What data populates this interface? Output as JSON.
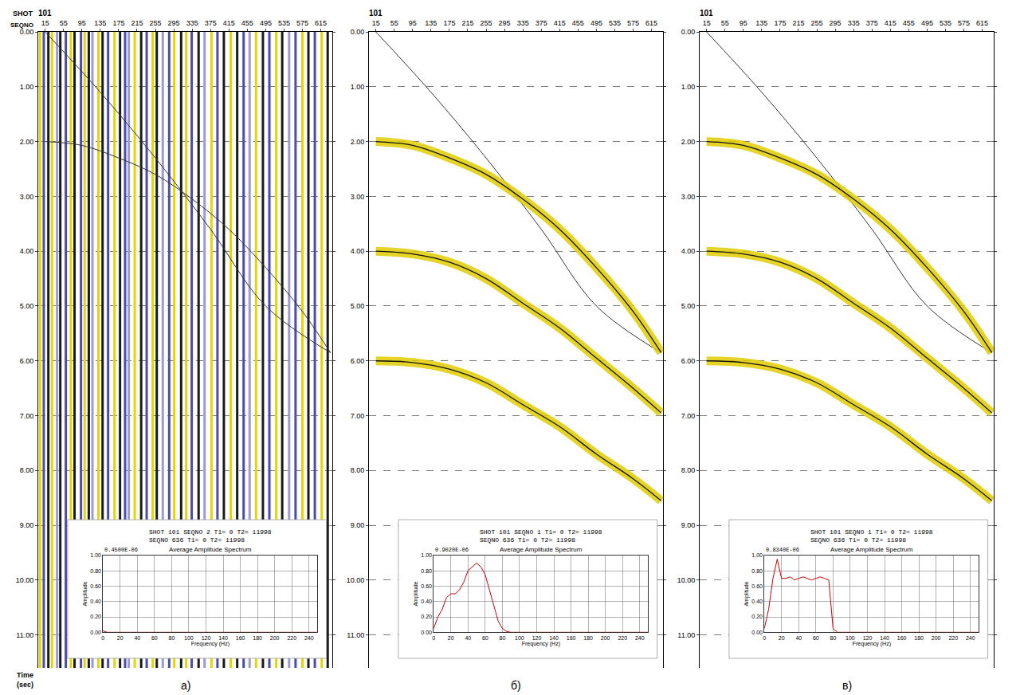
{
  "chart_data": [
    {
      "type": "line",
      "title": "а)",
      "shot_label": "SHOT",
      "x_label": "SEQNO",
      "shot": "101",
      "y_label": "Time (sec)",
      "xlim": [
        0,
        640
      ],
      "xticks": [
        15,
        55,
        95,
        135,
        175,
        215,
        255,
        295,
        335,
        375,
        415,
        455,
        495,
        535,
        575,
        615
      ],
      "ylim": [
        0,
        11.6
      ],
      "yticks": [
        {
          "value": 0,
          "label": "0.00"
        },
        {
          "value": 1,
          "label": "1.00"
        },
        {
          "value": 2,
          "label": "2.00"
        },
        {
          "value": 3,
          "label": "3.00"
        },
        {
          "value": 4,
          "label": "4.00"
        },
        {
          "value": 5,
          "label": "5.00"
        },
        {
          "value": 6,
          "label": "6.00"
        },
        {
          "value": 7,
          "label": "7.00"
        },
        {
          "value": 8,
          "label": "8.00"
        },
        {
          "value": 9,
          "label": "9.00"
        },
        {
          "value": 10,
          "label": "10.00"
        },
        {
          "value": 11,
          "label": "11.00"
        }
      ],
      "grid": true,
      "noise_traces": {
        "x": [
          4,
          12,
          22,
          30,
          41,
          48,
          60,
          71,
          79,
          93,
          101,
          110,
          118,
          131,
          140,
          152,
          166,
          178,
          189,
          197,
          210,
          224,
          236,
          249,
          258,
          271,
          285,
          296,
          311,
          322,
          334,
          349,
          362,
          377,
          390,
          404,
          419,
          433,
          447,
          460,
          474,
          489,
          503,
          518,
          531,
          546,
          560,
          575,
          588,
          602,
          617,
          630
        ],
        "colors": [
          "#e8d400",
          "#4b4bb4",
          "#1a1a1a",
          "#e8d400",
          "#9a9ad8",
          "#1a1a1a",
          "#4b4bb4",
          "#e8d400",
          "#1a1a1a",
          "#4b4bb4",
          "#e8d400",
          "#1a1a1a",
          "#9a9ad8",
          "#e8d400",
          "#1a1a1a",
          "#4b4bb4",
          "#e8d400",
          "#1a1a1a",
          "#4b4bb4",
          "#9a9ad8",
          "#e8d400",
          "#1a1a1a",
          "#4b4bb4",
          "#e8d400",
          "#1a1a1a",
          "#9a9ad8",
          "#4b4bb4",
          "#e8d400",
          "#1a1a1a",
          "#e8d400",
          "#4b4bb4",
          "#1a1a1a",
          "#9a9ad8",
          "#e8d400",
          "#4b4bb4",
          "#1a1a1a",
          "#e8d400",
          "#1a1a1a",
          "#4b4bb4",
          "#9a9ad8",
          "#e8d400",
          "#1a1a1a",
          "#4b4bb4",
          "#e8d400",
          "#1a1a1a",
          "#9a9ad8",
          "#4b4bb4",
          "#e8d400",
          "#1a1a1a",
          "#4b4bb4",
          "#e8d400",
          "#1a1a1a"
        ]
      },
      "series": [
        {
          "x": [
            15,
            135,
            255,
            375,
            495,
            636
          ],
          "values": [
            0,
            1.1,
            2.3,
            3.6,
            5.0,
            5.85
          ],
          "color": "#333333",
          "line_style": "solid"
        },
        {
          "x": [
            15,
            95,
            175,
            255,
            335,
            415,
            495,
            575,
            636
          ],
          "values": [
            2.0,
            2.07,
            2.3,
            2.6,
            3.05,
            3.6,
            4.3,
            5.1,
            5.85
          ],
          "color": "#333333",
          "line_style": "solid"
        }
      ],
      "spectrum": {
        "type": "line",
        "header": [
          "SHOT 101 SEQNO 2 T1= 0 T2= 11998",
          "SEQNO 636 T1= 0 T2= 11998"
        ],
        "title": "Average Amplitude Spectrum",
        "scale_label": "0.4500E-06",
        "x_label": "Frequency (Hz)",
        "y_label": "Amplitude",
        "x": [
          0,
          5,
          10,
          15,
          20,
          25,
          30,
          35,
          40,
          45,
          50,
          55,
          60,
          65,
          70,
          75,
          80,
          85,
          90,
          95,
          100,
          150,
          200,
          250
        ],
        "values": [
          0.02,
          0,
          0,
          0,
          0,
          0,
          0,
          0,
          0,
          0,
          0,
          0,
          0,
          0,
          0,
          0,
          0,
          0,
          0,
          0,
          0,
          0,
          0,
          0
        ],
        "color": "#cc0000",
        "xlim": [
          0,
          250
        ],
        "xticks": [
          0,
          20,
          40,
          60,
          80,
          100,
          120,
          140,
          160,
          180,
          200,
          220,
          240
        ],
        "ylim": [
          0,
          1
        ],
        "yticks": [
          {
            "value": 0,
            "label": "0.00"
          },
          {
            "value": 0.2,
            "label": "0.20"
          },
          {
            "value": 0.4,
            "label": "0.40"
          },
          {
            "value": 0.6,
            "label": "0.60"
          },
          {
            "value": 0.8,
            "label": "0.80"
          },
          {
            "value": 1,
            "label": "1.00"
          }
        ],
        "grid": true
      }
    },
    {
      "type": "line",
      "title": "б)",
      "shot": "101",
      "xlim": [
        0,
        640
      ],
      "xticks": [
        15,
        55,
        95,
        135,
        175,
        215,
        255,
        295,
        335,
        375,
        415,
        455,
        495,
        535,
        575,
        615
      ],
      "ylim": [
        0,
        11.6
      ],
      "yticks": [
        {
          "value": 0,
          "label": "0.00"
        },
        {
          "value": 1,
          "label": "1.00"
        },
        {
          "value": 2,
          "label": "2.00"
        },
        {
          "value": 3,
          "label": "3.00"
        },
        {
          "value": 4,
          "label": "4.00"
        },
        {
          "value": 5,
          "label": "5.00"
        },
        {
          "value": 6,
          "label": "6.00"
        },
        {
          "value": 7,
          "label": "7.00"
        },
        {
          "value": 8,
          "label": "8.00"
        },
        {
          "value": 9,
          "label": "9.00"
        },
        {
          "value": 10,
          "label": "10.00"
        },
        {
          "value": 11,
          "label": "11.00"
        }
      ],
      "grid": true,
      "series": [
        {
          "x": [
            15,
            135,
            255,
            375,
            495,
            636
          ],
          "values": [
            0,
            1.1,
            2.3,
            3.6,
            5.0,
            5.85
          ],
          "color": "#333333",
          "line_style": "solid"
        },
        {
          "x": [
            15,
            95,
            175,
            255,
            335,
            415,
            495,
            575,
            636
          ],
          "values": [
            2.0,
            2.07,
            2.3,
            2.6,
            3.05,
            3.6,
            4.3,
            5.1,
            5.85
          ],
          "color": "#e0cc00",
          "line_style": "band"
        },
        {
          "x": [
            15,
            95,
            175,
            255,
            335,
            415,
            495,
            575,
            636
          ],
          "values": [
            4.0,
            4.05,
            4.2,
            4.5,
            4.95,
            5.4,
            5.95,
            6.5,
            6.95
          ],
          "color": "#e0cc00",
          "line_style": "band"
        },
        {
          "x": [
            15,
            95,
            175,
            255,
            335,
            415,
            495,
            575,
            636
          ],
          "values": [
            6.0,
            6.03,
            6.15,
            6.4,
            6.8,
            7.2,
            7.7,
            8.15,
            8.55
          ],
          "color": "#e0cc00",
          "line_style": "band"
        }
      ],
      "spectrum": {
        "type": "line",
        "header": [
          "SHOT 101 SEQNO 1 T1= 0 T2= 11998",
          "SEQNO 636 T1= 0 T2= 11998"
        ],
        "title": "Average Amplitude Spectrum",
        "scale_label": "0.9020E-06",
        "x_label": "Frequency (Hz)",
        "y_label": "Amplitude",
        "x": [
          0,
          5,
          10,
          15,
          20,
          25,
          30,
          35,
          40,
          45,
          50,
          55,
          60,
          65,
          70,
          75,
          80,
          85,
          90,
          95,
          100,
          150,
          200,
          250
        ],
        "values": [
          0.05,
          0.2,
          0.3,
          0.45,
          0.5,
          0.5,
          0.55,
          0.65,
          0.8,
          0.85,
          0.9,
          0.85,
          0.75,
          0.55,
          0.35,
          0.15,
          0.05,
          0.01,
          0,
          0,
          0,
          0,
          0,
          0
        ],
        "color": "#cc0000",
        "xlim": [
          0,
          250
        ],
        "xticks": [
          0,
          20,
          40,
          60,
          80,
          100,
          120,
          140,
          160,
          180,
          200,
          220,
          240
        ],
        "ylim": [
          0,
          1
        ],
        "yticks": [
          {
            "value": 0,
            "label": "0.00"
          },
          {
            "value": 0.2,
            "label": "0.20"
          },
          {
            "value": 0.4,
            "label": "0.40"
          },
          {
            "value": 0.6,
            "label": "0.60"
          },
          {
            "value": 0.8,
            "label": "0.80"
          },
          {
            "value": 1,
            "label": "1.00"
          }
        ],
        "grid": true
      }
    },
    {
      "type": "line",
      "title": "в)",
      "shot": "101",
      "xlim": [
        0,
        640
      ],
      "xticks": [
        15,
        55,
        95,
        135,
        175,
        215,
        255,
        295,
        335,
        375,
        415,
        455,
        495,
        535,
        575,
        615
      ],
      "ylim": [
        0,
        11.6
      ],
      "yticks": [
        {
          "value": 0,
          "label": "0.00"
        },
        {
          "value": 1,
          "label": "1.00"
        },
        {
          "value": 2,
          "label": "2.00"
        },
        {
          "value": 3,
          "label": "3.00"
        },
        {
          "value": 4,
          "label": "4.00"
        },
        {
          "value": 5,
          "label": "5.00"
        },
        {
          "value": 6,
          "label": "6.00"
        },
        {
          "value": 7,
          "label": "7.00"
        },
        {
          "value": 8,
          "label": "8.00"
        },
        {
          "value": 9,
          "label": "9.00"
        },
        {
          "value": 10,
          "label": "10.00"
        },
        {
          "value": 11,
          "label": "11.00"
        }
      ],
      "grid": true,
      "series": [
        {
          "x": [
            15,
            135,
            255,
            375,
            495,
            636
          ],
          "values": [
            0,
            1.1,
            2.3,
            3.6,
            5.0,
            5.85
          ],
          "color": "#333333",
          "line_style": "solid"
        },
        {
          "x": [
            15,
            95,
            175,
            255,
            335,
            415,
            495,
            575,
            636
          ],
          "values": [
            2.0,
            2.07,
            2.3,
            2.6,
            3.05,
            3.6,
            4.3,
            5.1,
            5.85
          ],
          "color": "#e0cc00",
          "line_style": "band"
        },
        {
          "x": [
            15,
            95,
            175,
            255,
            335,
            415,
            495,
            575,
            636
          ],
          "values": [
            4.0,
            4.05,
            4.2,
            4.5,
            4.95,
            5.4,
            5.95,
            6.5,
            6.95
          ],
          "color": "#e0cc00",
          "line_style": "band"
        },
        {
          "x": [
            15,
            95,
            175,
            255,
            335,
            415,
            495,
            575,
            636
          ],
          "values": [
            6.0,
            6.03,
            6.15,
            6.4,
            6.8,
            7.2,
            7.7,
            8.15,
            8.55
          ],
          "color": "#e0cc00",
          "line_style": "band"
        }
      ],
      "spectrum": {
        "type": "line",
        "header": [
          "SHOT 101 SEQNO 1 T1= 0 T2= 11998",
          "SEQNO 636 T1= 0 T2= 11998"
        ],
        "title": "Average Amplitude Spectrum",
        "scale_label": "0.8340E-06",
        "x_label": "Frequency (Hz)",
        "y_label": "Amplitude",
        "x": [
          0,
          5,
          10,
          15,
          20,
          25,
          30,
          35,
          40,
          45,
          50,
          55,
          60,
          65,
          70,
          75,
          80,
          85,
          90,
          95,
          100,
          150,
          200,
          250
        ],
        "values": [
          0.05,
          0.3,
          0.7,
          0.95,
          0.7,
          0.7,
          0.72,
          0.68,
          0.7,
          0.72,
          0.7,
          0.68,
          0.7,
          0.72,
          0.7,
          0.68,
          0.05,
          0,
          0,
          0,
          0,
          0,
          0,
          0
        ],
        "color": "#cc0000",
        "xlim": [
          0,
          250
        ],
        "xticks": [
          0,
          20,
          40,
          60,
          80,
          100,
          120,
          140,
          160,
          180,
          200,
          220,
          240
        ],
        "ylim": [
          0,
          1
        ],
        "yticks": [
          {
            "value": 0,
            "label": "0.00"
          },
          {
            "value": 0.2,
            "label": "0.20"
          },
          {
            "value": 0.4,
            "label": "0.40"
          },
          {
            "value": 0.6,
            "label": "0.60"
          },
          {
            "value": 0.8,
            "label": "0.80"
          },
          {
            "value": 1,
            "label": "1.00"
          }
        ],
        "grid": true
      }
    }
  ]
}
